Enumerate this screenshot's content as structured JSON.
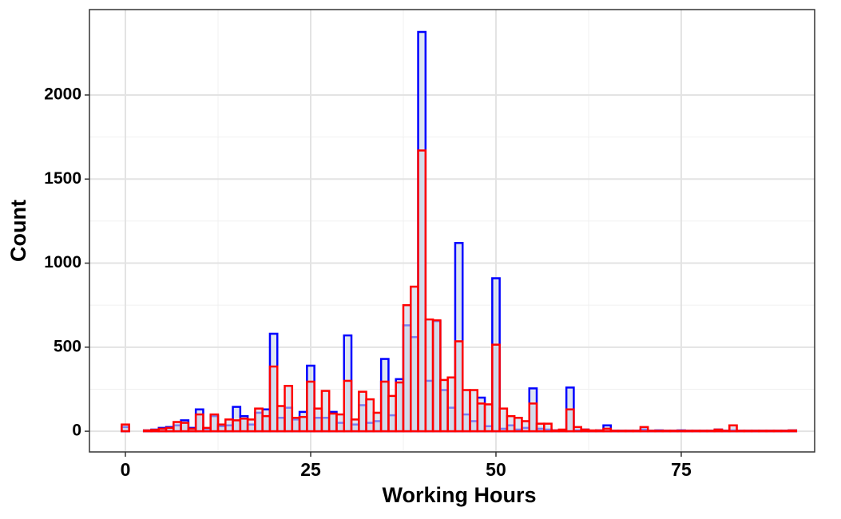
{
  "chart_data": {
    "type": "histogram",
    "x_label": "Working Hours",
    "y_label": "Count",
    "bins": [
      -0.5,
      0.5,
      1.5,
      2.5,
      3.5,
      4.5,
      5.5,
      6.5,
      7.5,
      8.5,
      9.5,
      10.5,
      11.5,
      12.5,
      13.5,
      14.5,
      15.5,
      16.5,
      17.5,
      18.5,
      19.5,
      20.5,
      21.5,
      22.5,
      23.5,
      24.5,
      25.5,
      26.5,
      27.5,
      28.5,
      29.5,
      30.5,
      31.5,
      32.5,
      33.5,
      34.5,
      35.5,
      36.5,
      37.5,
      38.5,
      39.5,
      40.5,
      41.5,
      42.5,
      43.5,
      44.5,
      45.5,
      46.5,
      47.5,
      48.5,
      49.5,
      50.5,
      51.5,
      52.5,
      53.5,
      54.5,
      55.5,
      56.5,
      57.5,
      58.5,
      59.5,
      60.5,
      61.5,
      62.5,
      63.5,
      64.5,
      65.5,
      66.5,
      67.5,
      68.5,
      69.5,
      70.5,
      71.5,
      72.5,
      73.5,
      74.5,
      75.5,
      76.5,
      77.5,
      78.5,
      79.5,
      80.5,
      81.5,
      82.5,
      83.5,
      84.5,
      85.5,
      86.5,
      87.5,
      88.5,
      89.5,
      90.5
    ],
    "series": [
      {
        "color": "#0000ff",
        "fill": "#c9d6e8",
        "values": [
          25,
          0,
          0,
          5,
          10,
          20,
          25,
          35,
          65,
          20,
          130,
          15,
          90,
          30,
          35,
          145,
          90,
          40,
          110,
          130,
          580,
          80,
          140,
          70,
          115,
          390,
          80,
          80,
          115,
          50,
          570,
          40,
          155,
          50,
          60,
          430,
          95,
          310,
          630,
          560,
          2375,
          300,
          655,
          245,
          140,
          1120,
          100,
          60,
          200,
          30,
          910,
          15,
          35,
          10,
          20,
          255,
          15,
          10,
          5,
          5,
          260,
          5,
          10,
          3,
          5,
          35,
          3,
          3,
          3,
          3,
          10,
          3,
          5,
          3,
          3,
          5,
          3,
          3,
          3,
          3,
          10,
          3,
          5,
          3,
          3,
          3,
          3,
          3,
          3,
          3,
          5
        ]
      },
      {
        "color": "#ff0000",
        "fill": "#c9d6e8",
        "values": [
          40,
          0,
          0,
          5,
          8,
          15,
          20,
          55,
          50,
          15,
          100,
          20,
          100,
          40,
          70,
          65,
          75,
          70,
          135,
          90,
          385,
          150,
          270,
          80,
          85,
          295,
          135,
          240,
          105,
          100,
          300,
          70,
          235,
          190,
          110,
          295,
          210,
          290,
          750,
          860,
          1670,
          665,
          660,
          305,
          320,
          535,
          245,
          245,
          165,
          160,
          515,
          135,
          90,
          80,
          60,
          165,
          45,
          45,
          5,
          10,
          130,
          25,
          10,
          5,
          5,
          15,
          3,
          3,
          3,
          3,
          25,
          3,
          3,
          3,
          3,
          3,
          3,
          3,
          3,
          3,
          10,
          3,
          35,
          3,
          3,
          3,
          3,
          3,
          3,
          3,
          5
        ]
      }
    ],
    "xlim": [
      -4.85,
      93
    ],
    "ylim": [
      -123,
      2508
    ],
    "xticks": [
      0,
      25,
      50,
      75
    ],
    "yticks": [
      0,
      500,
      1000,
      1500,
      2000
    ],
    "grid": true,
    "minor_grid": true
  }
}
